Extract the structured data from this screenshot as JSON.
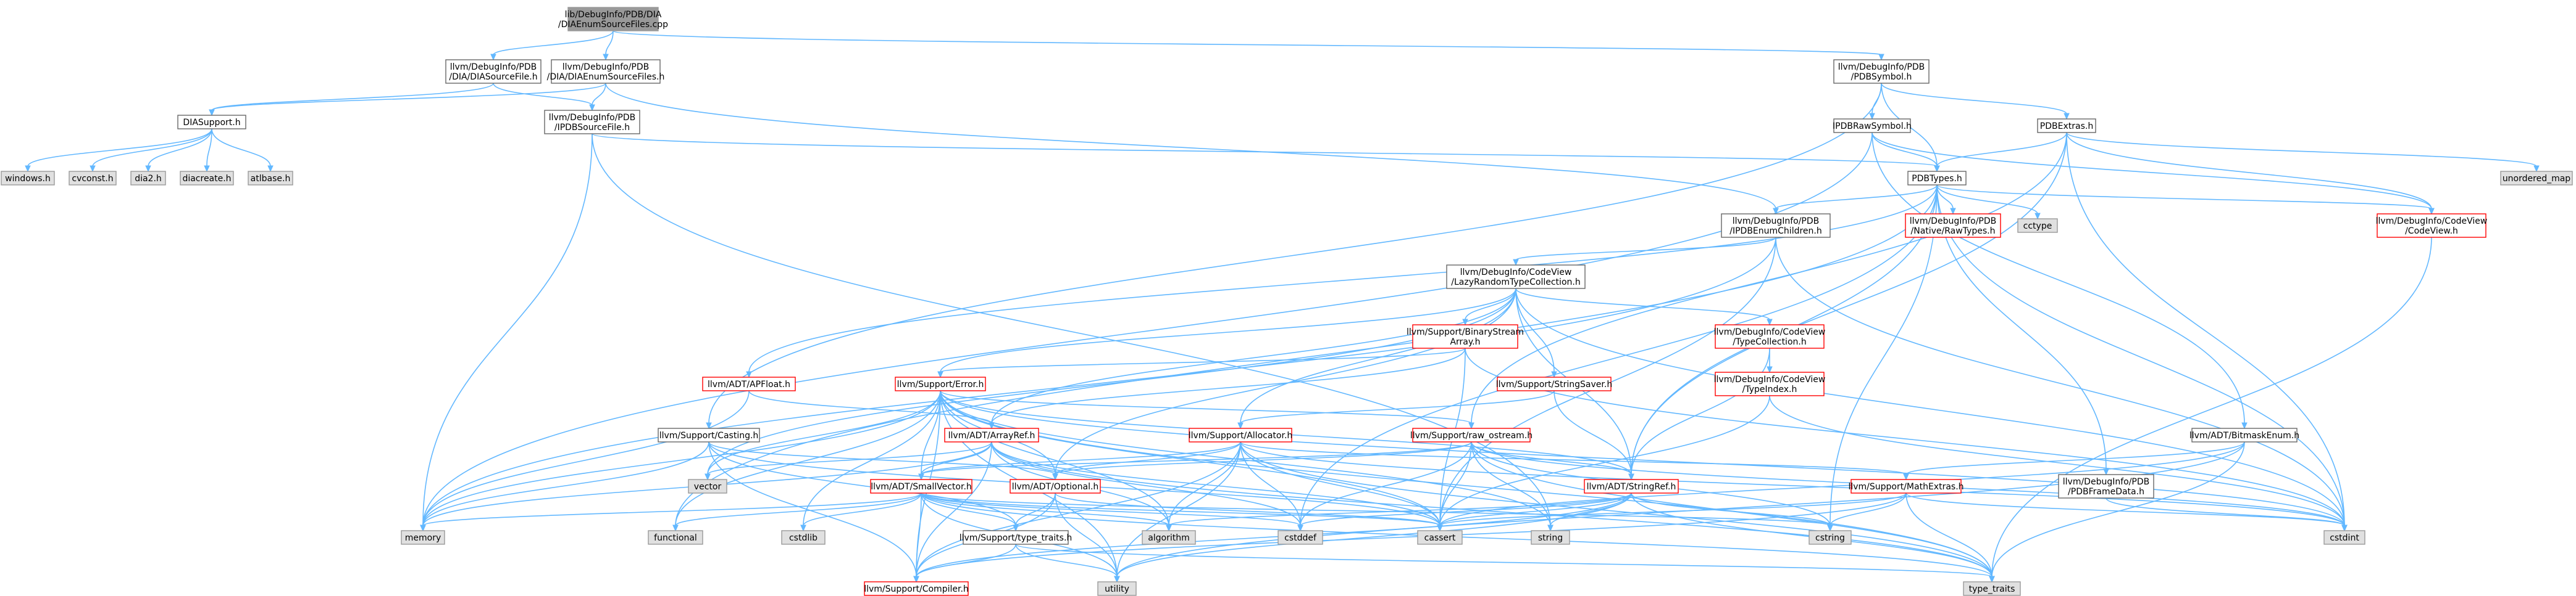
{
  "colors": {
    "root_fill": "#999999",
    "normal_fill": "#ffffff",
    "normal_border": "#666666",
    "red_border": "#ff0000",
    "system_fill": "#e0e0e0",
    "system_border": "#999999",
    "edge": "#63b8ff"
  },
  "nodes": {
    "root": [
      "lib/DebugInfo/PDB/DIA",
      "/DIAEnumSourceFiles.cpp"
    ],
    "diasourcefile": [
      "llvm/DebugInfo/PDB",
      "/DIA/DIASourceFile.h"
    ],
    "diaenumsourcefiles": [
      "llvm/DebugInfo/PDB",
      "/DIA/DIAEnumSourceFiles.h"
    ],
    "pdbsymbol": [
      "llvm/DebugInfo/PDB",
      "/PDBSymbol.h"
    ],
    "diasupport": [
      "DIASupport.h"
    ],
    "ipdbsourcefile": [
      "llvm/DebugInfo/PDB",
      "/IPDBSourceFile.h"
    ],
    "ipdbrawsymbol": [
      "IPDBRawSymbol.h"
    ],
    "pdbextras": [
      "PDBExtras.h"
    ],
    "windows": [
      "windows.h"
    ],
    "cvconst": [
      "cvconst.h"
    ],
    "dia2": [
      "dia2.h"
    ],
    "diacreate": [
      "diacreate.h"
    ],
    "atlbase": [
      "atlbase.h"
    ],
    "pdbtypes": [
      "PDBTypes.h"
    ],
    "unordered_map": [
      "unordered_map"
    ],
    "ipdbenumchildren": [
      "llvm/DebugInfo/PDB",
      "/IPDBEnumChildren.h"
    ],
    "nativerawtypes": [
      "llvm/DebugInfo/PDB",
      "/Native/RawTypes.h"
    ],
    "cctype": [
      "cctype"
    ],
    "codeview": [
      "llvm/DebugInfo/CodeView",
      "/CodeView.h"
    ],
    "lazyrandom": [
      "llvm/DebugInfo/CodeView",
      "/LazyRandomTypeCollection.h"
    ],
    "binarystream": [
      "llvm/Support/BinaryStream",
      "Array.h"
    ],
    "typecollection": [
      "llvm/DebugInfo/CodeView",
      "/TypeCollection.h"
    ],
    "apfloat": [
      "llvm/ADT/APFloat.h"
    ],
    "error": [
      "llvm/Support/Error.h"
    ],
    "stringsaver": [
      "llvm/Support/StringSaver.h"
    ],
    "typeindex": [
      "llvm/DebugInfo/CodeView",
      "/TypeIndex.h"
    ],
    "casting": [
      "llvm/Support/Casting.h"
    ],
    "arrayref": [
      "llvm/ADT/ArrayRef.h"
    ],
    "allocator": [
      "llvm/Support/Allocator.h"
    ],
    "rawostream": [
      "llvm/Support/raw_ostream.h"
    ],
    "bitmaskenum": [
      "llvm/ADT/BitmaskEnum.h"
    ],
    "vector": [
      "vector"
    ],
    "smallvector": [
      "llvm/ADT/SmallVector.h"
    ],
    "optional": [
      "llvm/ADT/Optional.h"
    ],
    "stringref": [
      "llvm/ADT/StringRef.h"
    ],
    "mathextras": [
      "llvm/Support/MathExtras.h"
    ],
    "pdbframedata": [
      "llvm/DebugInfo/PDB",
      "/PDBFrameData.h"
    ],
    "memory": [
      "memory"
    ],
    "functional": [
      "functional"
    ],
    "cstdlib": [
      "cstdlib"
    ],
    "typetraitssupport": [
      "llvm/Support/type_traits.h"
    ],
    "algorithm": [
      "algorithm"
    ],
    "cstddef": [
      "cstddef"
    ],
    "cassert": [
      "cassert"
    ],
    "string": [
      "string"
    ],
    "cstring": [
      "cstring"
    ],
    "cstdint": [
      "cstdint"
    ],
    "compiler": [
      "llvm/Support/Compiler.h"
    ],
    "utility": [
      "utility"
    ],
    "type_traits": [
      "type_traits"
    ]
  }
}
